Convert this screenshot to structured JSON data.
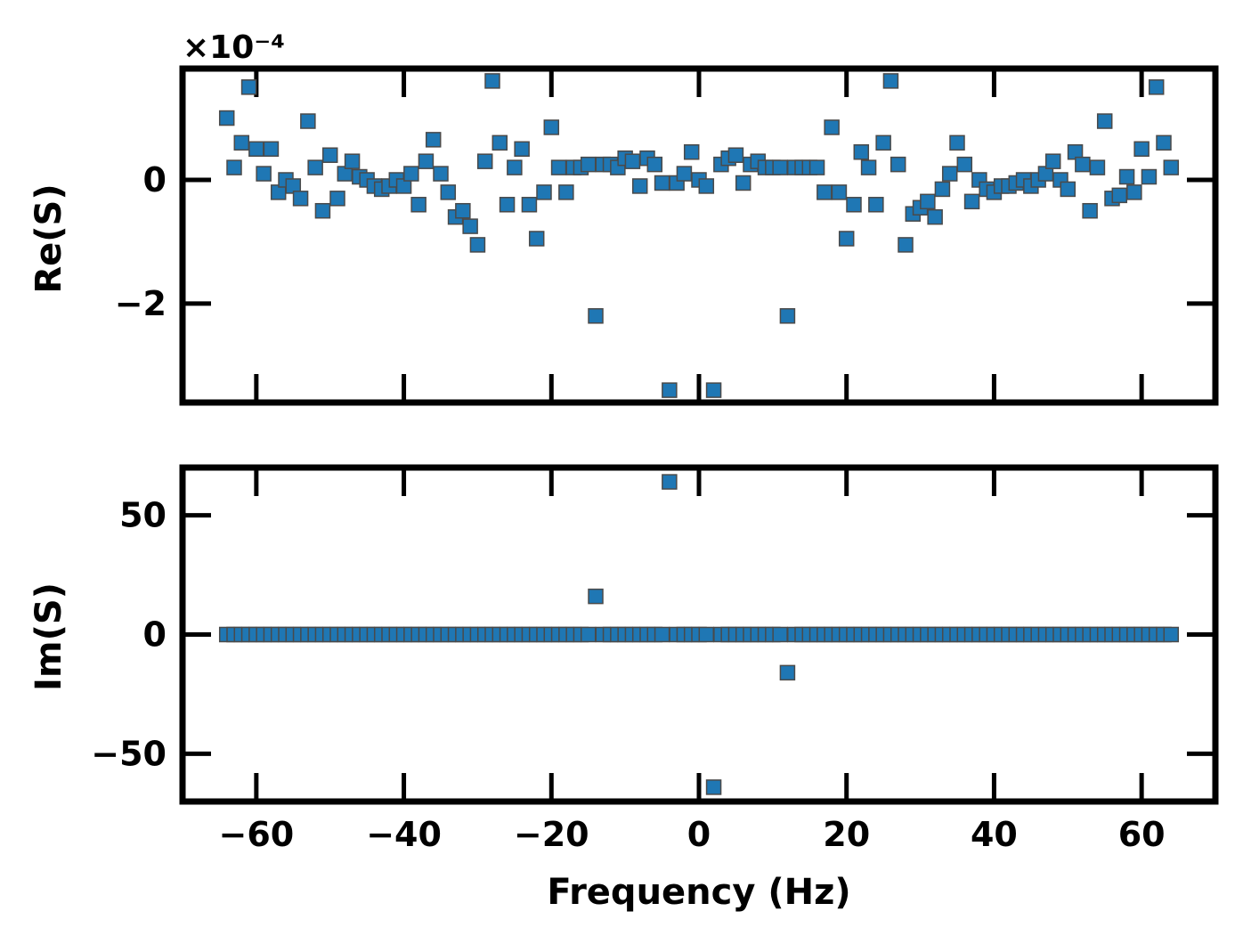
{
  "chart_data": [
    {
      "type": "scatter",
      "title": "",
      "xlabel": "",
      "ylabel": "Re(S)",
      "offset_text": "×10⁻⁴",
      "xlim": [
        -70,
        70
      ],
      "ylim": [
        -3.6,
        1.8
      ],
      "xticks": [
        -60,
        -40,
        -20,
        0,
        20,
        40,
        60
      ],
      "xtick_labels": [],
      "yticks": [
        -2,
        0
      ],
      "ytick_labels": [
        "−2",
        "0"
      ],
      "grid": false,
      "series": [
        {
          "x": [
            -64,
            -63,
            -62,
            -61,
            -60,
            -59,
            -58,
            -57,
            -56,
            -55,
            -54,
            -53,
            -52,
            -51,
            -50,
            -49,
            -48,
            -47,
            -46,
            -45,
            -44,
            -43,
            -42,
            -41,
            -40,
            -39,
            -38,
            -37,
            -36,
            -35,
            -34,
            -33,
            -32,
            -31,
            -30,
            -29,
            -28,
            -27,
            -26,
            -25,
            -24,
            -23,
            -22,
            -21,
            -20,
            -19,
            -18,
            -17,
            -16,
            -15,
            -14,
            -13,
            -12,
            -11,
            -10,
            -9,
            -8,
            -7,
            -6,
            -5,
            -4,
            -3,
            -2,
            -1,
            0,
            1,
            2,
            3,
            4,
            5,
            6,
            7,
            8,
            9,
            10,
            11,
            12,
            13,
            14,
            15,
            16,
            17,
            18,
            19,
            20,
            21,
            22,
            23,
            24,
            25,
            26,
            27,
            28,
            29,
            30,
            31,
            32,
            33,
            34,
            35,
            36,
            37,
            38,
            39,
            40,
            41,
            42,
            43,
            44,
            45,
            46,
            47,
            48,
            49,
            50,
            51,
            52,
            53,
            54,
            55,
            56,
            57,
            58,
            59,
            60,
            61,
            62,
            63,
            64
          ],
          "y": [
            1.0,
            0.2,
            0.6,
            1.5,
            0.5,
            0.1,
            0.5,
            -0.2,
            0.0,
            -0.1,
            -0.3,
            0.95,
            0.2,
            -0.5,
            0.4,
            -0.3,
            0.1,
            0.3,
            0.05,
            0.0,
            -0.1,
            -0.15,
            -0.1,
            0.0,
            -0.1,
            0.1,
            -0.4,
            0.3,
            0.65,
            0.1,
            -0.2,
            -0.6,
            -0.5,
            -0.75,
            -1.05,
            0.3,
            1.6,
            0.6,
            -0.4,
            0.2,
            0.5,
            -0.4,
            -0.95,
            -0.2,
            0.85,
            0.2,
            -0.2,
            0.2,
            0.2,
            0.25,
            -2.2,
            0.25,
            0.25,
            0.2,
            0.35,
            0.3,
            -0.1,
            0.35,
            0.25,
            -0.05,
            -3.4,
            -0.05,
            0.1,
            0.45,
            0.0,
            -0.1,
            -3.4,
            0.25,
            0.35,
            0.4,
            -0.05,
            0.25,
            0.3,
            0.2,
            0.2,
            0.2,
            -2.2,
            0.2,
            0.2,
            0.2,
            0.2,
            -0.2,
            0.85,
            -0.2,
            -0.95,
            -0.4,
            0.45,
            0.2,
            -0.4,
            0.6,
            1.6,
            0.25,
            -1.05,
            -0.55,
            -0.45,
            -0.35,
            -0.6,
            -0.15,
            0.1,
            0.6,
            0.25,
            -0.35,
            0.0,
            -0.15,
            -0.2,
            -0.1,
            -0.1,
            -0.05,
            0.0,
            -0.1,
            0.0,
            0.1,
            0.3,
            0.0,
            -0.15,
            0.45,
            0.25,
            -0.5,
            0.2,
            0.95,
            -0.3,
            -0.25,
            0.05,
            -0.2,
            0.5,
            0.05,
            1.5,
            0.6,
            0.2
          ]
        }
      ]
    },
    {
      "type": "scatter",
      "title": "",
      "xlabel": "Frequency (Hz)",
      "ylabel": "Im(S)",
      "xlim": [
        -70,
        70
      ],
      "ylim": [
        -70,
        70
      ],
      "xticks": [
        -60,
        -40,
        -20,
        0,
        20,
        40,
        60
      ],
      "xtick_labels": [
        "−60",
        "−40",
        "−20",
        "0",
        "20",
        "40",
        "60"
      ],
      "yticks": [
        -50,
        0,
        50
      ],
      "ytick_labels": [
        "−50",
        "0",
        "50"
      ],
      "grid": false,
      "series": [
        {
          "x": [
            -64,
            -63,
            -62,
            -61,
            -60,
            -59,
            -58,
            -57,
            -56,
            -55,
            -54,
            -53,
            -52,
            -51,
            -50,
            -49,
            -48,
            -47,
            -46,
            -45,
            -44,
            -43,
            -42,
            -41,
            -40,
            -39,
            -38,
            -37,
            -36,
            -35,
            -34,
            -33,
            -32,
            -31,
            -30,
            -29,
            -28,
            -27,
            -26,
            -25,
            -24,
            -23,
            -22,
            -21,
            -20,
            -19,
            -18,
            -17,
            -16,
            -15,
            -14,
            -13,
            -12,
            -11,
            -10,
            -9,
            -8,
            -7,
            -6,
            -5,
            -4,
            -3,
            -2,
            -1,
            0,
            1,
            2,
            3,
            4,
            5,
            6,
            7,
            8,
            9,
            10,
            11,
            12,
            13,
            14,
            15,
            16,
            17,
            18,
            19,
            20,
            21,
            22,
            23,
            24,
            25,
            26,
            27,
            28,
            29,
            30,
            31,
            32,
            33,
            34,
            35,
            36,
            37,
            38,
            39,
            40,
            41,
            42,
            43,
            44,
            45,
            46,
            47,
            48,
            49,
            50,
            51,
            52,
            53,
            54,
            55,
            56,
            57,
            58,
            59,
            60,
            61,
            62,
            63,
            64
          ],
          "y": [
            0,
            0,
            0,
            0,
            0,
            0,
            0,
            0,
            0,
            0,
            0,
            0,
            0,
            0,
            0,
            0,
            0,
            0,
            0,
            0,
            0,
            0,
            0,
            0,
            0,
            0,
            0,
            0,
            0,
            0,
            0,
            0,
            0,
            0,
            0,
            0,
            0,
            0,
            0,
            0,
            0,
            0,
            0,
            0,
            0,
            0,
            0,
            0,
            0,
            0,
            16,
            0,
            0,
            0,
            0,
            0,
            0,
            0,
            0,
            0,
            64,
            0,
            0,
            0,
            0,
            0,
            -64,
            0,
            0,
            0,
            0,
            0,
            0,
            0,
            0,
            0,
            -16,
            0,
            0,
            0,
            0,
            0,
            0,
            0,
            0,
            0,
            0,
            0,
            0,
            0,
            0,
            0,
            0,
            0,
            0,
            0,
            0,
            0,
            0,
            0,
            0,
            0,
            0,
            0,
            0,
            0,
            0,
            0,
            0,
            0,
            0,
            0,
            0,
            0,
            0,
            0,
            0,
            0,
            0,
            0,
            0,
            0,
            0,
            0,
            0,
            0,
            0,
            0,
            0
          ]
        }
      ]
    }
  ]
}
